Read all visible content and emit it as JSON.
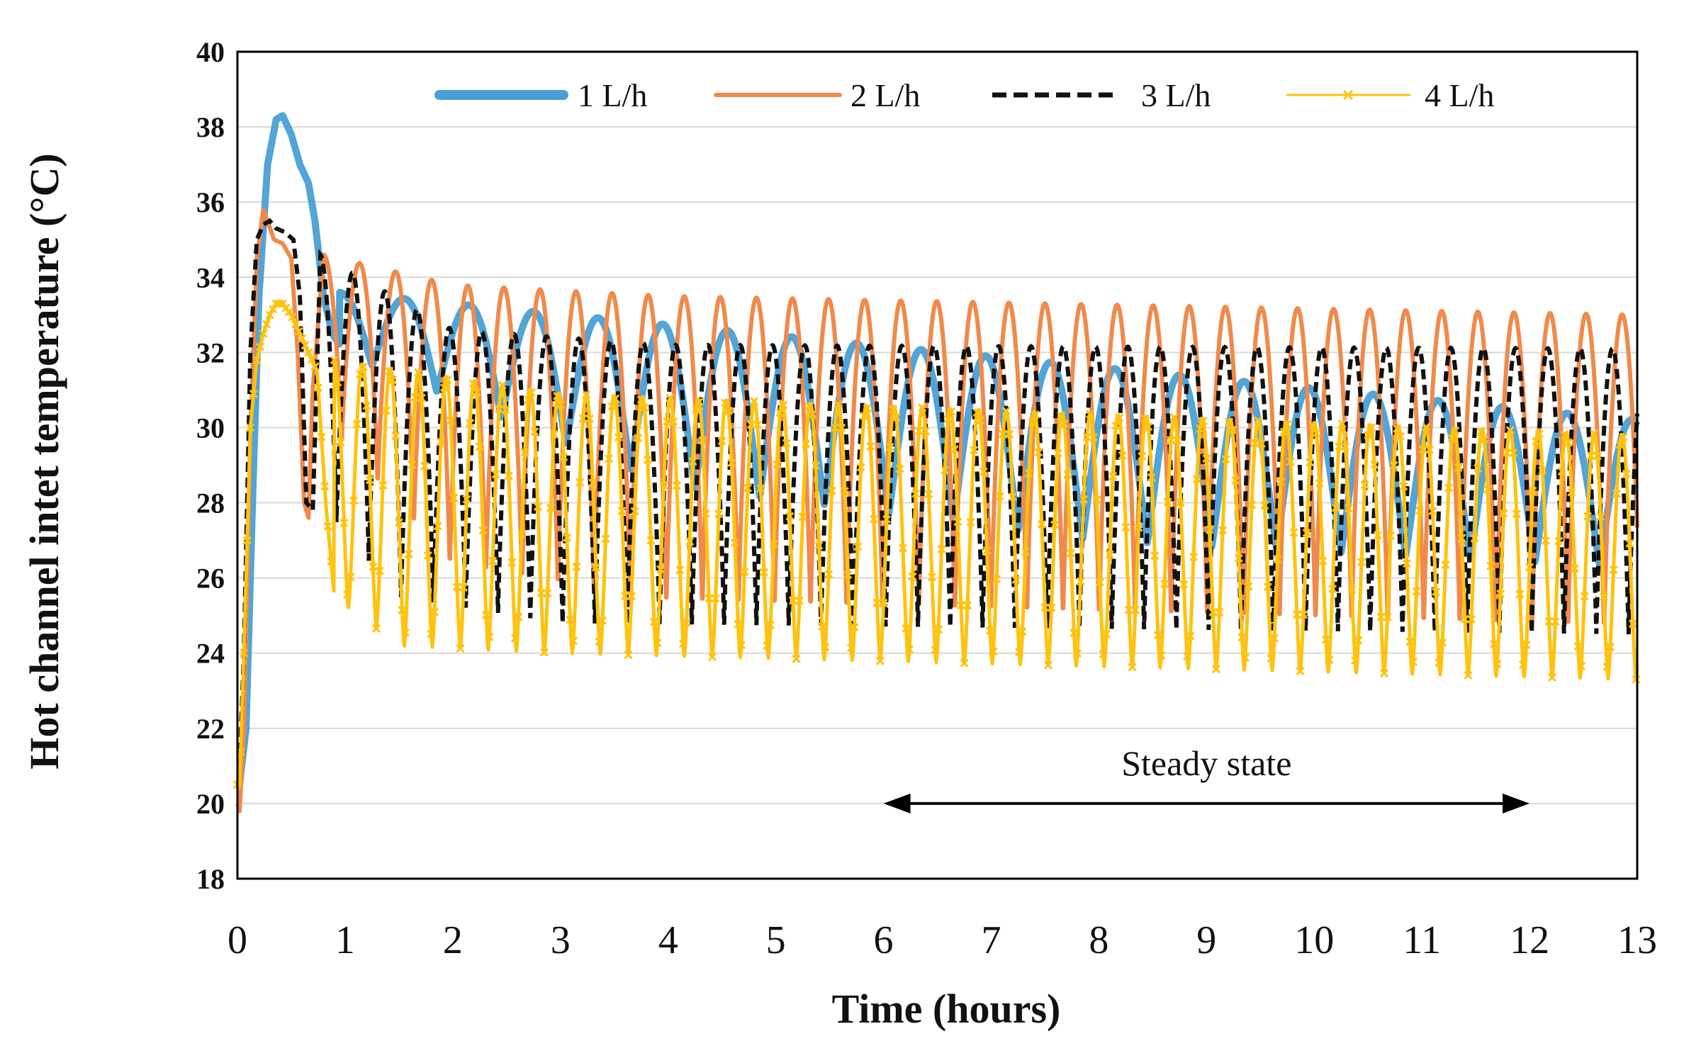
{
  "chart_data": {
    "type": "line",
    "title": "",
    "xlabel": "Time (hours)",
    "ylabel": "Hot channel  intet temperature (°C)",
    "xlim": [
      0,
      13
    ],
    "ylim": [
      18,
      40
    ],
    "x_ticks": [
      "0",
      "1",
      "2",
      "3",
      "4",
      "5",
      "6",
      "7",
      "8",
      "9",
      "10",
      "11",
      "12",
      "13"
    ],
    "y_ticks": [
      "18",
      "20",
      "22",
      "24",
      "26",
      "28",
      "30",
      "32",
      "34",
      "36",
      "38",
      "40"
    ],
    "grid": "horizontal",
    "legend_position": "top",
    "colors": {
      "s1": "#4a9fd5",
      "s2": "#f08a4b",
      "s3": "#111111",
      "s4": "#ffc20e",
      "grid": "#d9d9d9",
      "axis": "#000000"
    },
    "annotation": {
      "text": "Steady state",
      "x_start": 6,
      "x_end": 12,
      "y": 20
    },
    "series": [
      {
        "name": "1 L/h",
        "style": "thick-solid",
        "period": 0.6,
        "phase": 0.95,
        "initial": {
          "x": [
            0,
            0.02,
            0.08,
            0.14,
            0.2,
            0.28,
            0.36,
            0.42,
            0.5,
            0.58,
            0.66,
            0.72,
            0.8,
            0.88,
            0.95
          ],
          "y": [
            20.5,
            20.5,
            22.0,
            28.0,
            33.5,
            37.0,
            38.2,
            38.3,
            37.8,
            37.0,
            36.5,
            35.5,
            33.5,
            32.5,
            32.2
          ]
        },
        "max_points": {
          "x": [
            0.95,
            13
          ],
          "y": [
            33.6,
            30.2
          ]
        },
        "min_points": {
          "x": [
            0.95,
            4,
            8,
            13
          ],
          "y": [
            32.0,
            28.5,
            27.0,
            26.3
          ]
        },
        "sharpness": 0.9
      },
      {
        "name": "2 L/h",
        "style": "solid",
        "period": 0.335,
        "phase": 0.8,
        "initial": {
          "x": [
            0,
            0.02,
            0.06,
            0.12,
            0.18,
            0.24,
            0.28,
            0.34,
            0.42,
            0.5,
            0.56,
            0.62,
            0.66,
            0.7,
            0.8
          ],
          "y": [
            20.0,
            19.8,
            22.0,
            30.0,
            34.5,
            35.8,
            35.5,
            35.0,
            34.9,
            34.5,
            32.0,
            28.0,
            27.6,
            31.0,
            34.6
          ]
        },
        "max_points": {
          "x": [
            0.8,
            2,
            4,
            13
          ],
          "y": [
            34.6,
            33.8,
            33.5,
            33.0
          ]
        },
        "min_points": {
          "x": [
            0.8,
            2,
            4,
            13
          ],
          "y": [
            30.0,
            26.0,
            25.0,
            24.3
          ]
        },
        "sharpness": 1.6
      },
      {
        "name": "3 L/h",
        "style": "dashed",
        "period": 0.3,
        "phase": 0.77,
        "initial": {
          "x": [
            0,
            0.02,
            0.06,
            0.12,
            0.18,
            0.24,
            0.3,
            0.36,
            0.44,
            0.52,
            0.58,
            0.64,
            0.7,
            0.77
          ],
          "y": [
            21.0,
            21.0,
            24.0,
            32.0,
            35.0,
            35.4,
            35.5,
            35.3,
            35.2,
            35.0,
            33.5,
            28.0,
            27.8,
            34.6
          ]
        },
        "max_points": {
          "x": [
            0.77,
            2,
            4,
            13
          ],
          "y": [
            34.6,
            32.6,
            32.2,
            32.1
          ]
        },
        "min_points": {
          "x": [
            0.77,
            1.5,
            3,
            13
          ],
          "y": [
            28.0,
            25.5,
            24.8,
            24.5
          ]
        },
        "sharpness": 1.3
      },
      {
        "name": "4 L/h",
        "style": "marker-x",
        "period": 0.26,
        "phase": 0.9,
        "initial": {
          "x": [
            0,
            0.02,
            0.06,
            0.12,
            0.18,
            0.24,
            0.3,
            0.36,
            0.42,
            0.5,
            0.58,
            0.66,
            0.74,
            0.82,
            0.9
          ],
          "y": [
            20.5,
            20.5,
            24.0,
            30.0,
            31.8,
            32.5,
            33.0,
            33.3,
            33.3,
            33.0,
            32.5,
            32.0,
            31.5,
            28.0,
            25.5
          ]
        },
        "max_points": {
          "x": [
            0.9,
            3,
            13
          ],
          "y": [
            31.8,
            30.9,
            29.8
          ]
        },
        "min_points": {
          "x": [
            0.9,
            1.5,
            3,
            13
          ],
          "y": [
            25.5,
            24.2,
            24.0,
            23.3
          ]
        },
        "sharpness": 0.4
      }
    ]
  }
}
